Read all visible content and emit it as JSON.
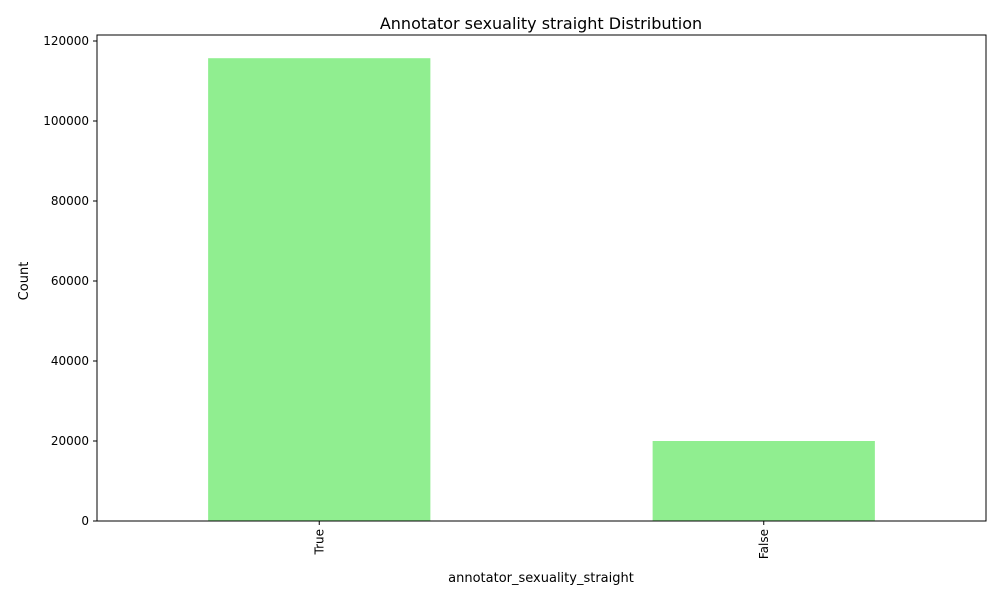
{
  "chart_data": {
    "type": "bar",
    "title": "Annotator sexuality straight Distribution",
    "xlabel": "annotator_sexuality_straight",
    "ylabel": "Count",
    "categories": [
      "True",
      "False"
    ],
    "values": [
      115700,
      20000
    ],
    "ylim": [
      0,
      121500
    ],
    "yticks": [
      0,
      20000,
      40000,
      60000,
      80000,
      100000,
      120000
    ],
    "ytick_labels": [
      "0",
      "20000",
      "40000",
      "60000",
      "80000",
      "100000",
      "120000"
    ],
    "grid": false,
    "legend": "none",
    "bar_color": "#90ee90",
    "xtick_rotation": "vertical"
  }
}
